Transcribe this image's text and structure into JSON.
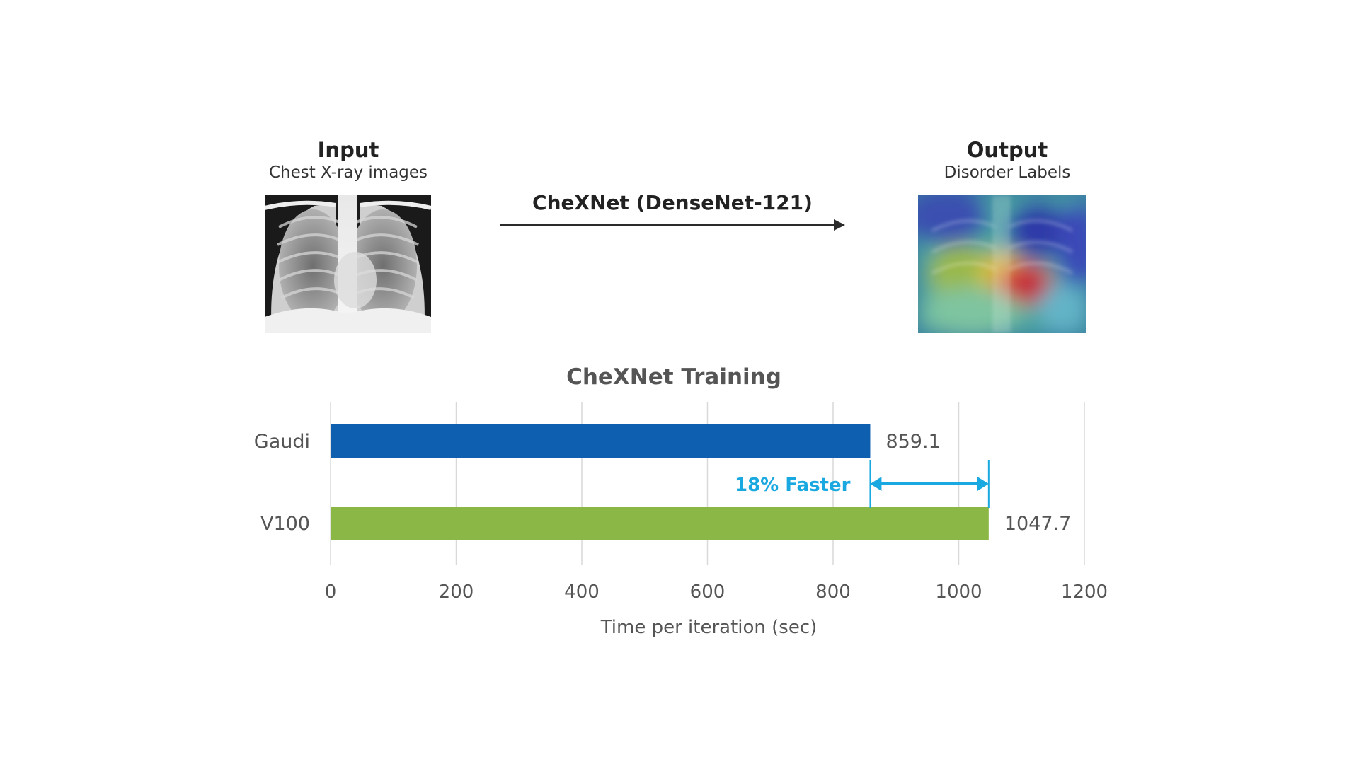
{
  "diagram": {
    "input": {
      "title": "Input",
      "subtitle": "Chest X-ray images"
    },
    "output": {
      "title": "Output",
      "subtitle": "Disorder Labels"
    },
    "arrow_label": "CheXNet (DenseNet-121)",
    "colors": {
      "arrow": "#2b2b2b"
    }
  },
  "chart_data": {
    "type": "bar",
    "orientation": "horizontal",
    "title": "CheXNet Training",
    "categories": [
      "Gaudi",
      "V100"
    ],
    "values": [
      859.1,
      1047.7
    ],
    "data_labels": [
      "859.1",
      "1047.7"
    ],
    "colors": [
      "#0e5fb0",
      "#8bb746"
    ],
    "xlabel": "Time per iteration (sec)",
    "ylabel": "",
    "xlim": [
      0,
      1200
    ],
    "xticks": [
      0,
      200,
      400,
      600,
      800,
      1000,
      1200
    ],
    "grid": true,
    "annotation": {
      "text": "18% Faster",
      "from": 859.1,
      "to": 1047.7,
      "color": "#19a9e0"
    }
  }
}
